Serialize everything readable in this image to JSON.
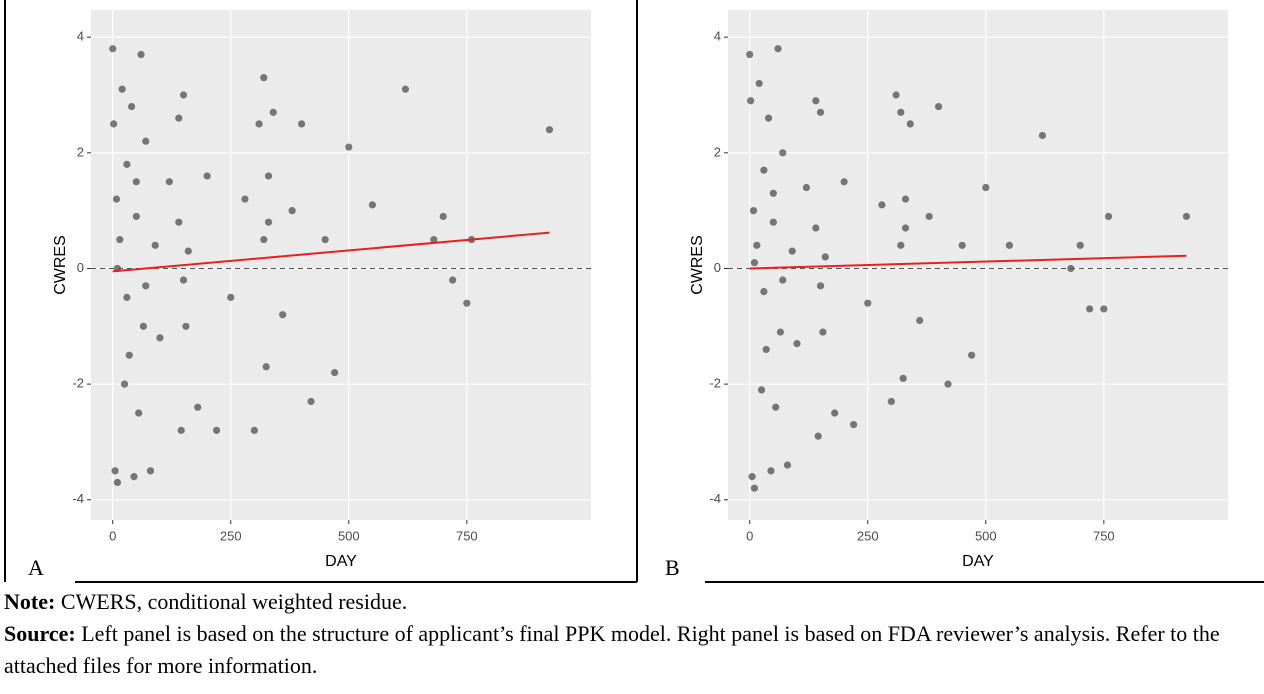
{
  "chart_data": [
    {
      "type": "scatter",
      "panel_label": "A",
      "x_label": "DAY",
      "y_label": "CWRES",
      "xlim": [
        -46,
        1013
      ],
      "ylim": [
        -4.35,
        4.47
      ],
      "xticks": [
        0,
        250,
        500,
        750
      ],
      "yticks": [
        -4,
        -2,
        0,
        2,
        4
      ],
      "hline": 0,
      "points": {
        "color": "#000000",
        "x": [
          0,
          2,
          5,
          8,
          10,
          15,
          20,
          25,
          30,
          35,
          40,
          45,
          50,
          55,
          60,
          65,
          70,
          80,
          90,
          100,
          120,
          140,
          145,
          150,
          155,
          160,
          180,
          200,
          220,
          250,
          280,
          300,
          310,
          320,
          325,
          330,
          340,
          360,
          380,
          400,
          420,
          450,
          470,
          500,
          550,
          620,
          680,
          700,
          720,
          750,
          760,
          925,
          10,
          30,
          50,
          70,
          140,
          150,
          320,
          330
        ],
        "y": [
          3.8,
          2.5,
          -3.5,
          1.2,
          -3.7,
          0.5,
          3.1,
          -2.0,
          1.8,
          -1.5,
          2.8,
          -3.6,
          0.9,
          -2.5,
          3.7,
          -1.0,
          2.2,
          -3.5,
          0.4,
          -1.2,
          1.5,
          2.6,
          -2.8,
          3.0,
          -1.0,
          0.3,
          -2.4,
          1.6,
          -2.8,
          -0.5,
          1.2,
          -2.8,
          2.5,
          3.3,
          -1.7,
          0.8,
          2.7,
          -0.8,
          1.0,
          2.5,
          -2.3,
          0.5,
          -1.8,
          2.1,
          1.1,
          3.1,
          0.5,
          0.9,
          -0.2,
          -0.6,
          0.5,
          2.4,
          0.0,
          -0.5,
          1.5,
          -0.3,
          0.8,
          -0.2,
          0.5,
          1.6
        ]
      },
      "trend": {
        "color": "#e8211c",
        "x": [
          0,
          925
        ],
        "y": [
          -0.05,
          0.62
        ]
      }
    },
    {
      "type": "scatter",
      "panel_label": "B",
      "x_label": "DAY",
      "y_label": "CWRES",
      "xlim": [
        -46,
        1013
      ],
      "ylim": [
        -4.35,
        4.47
      ],
      "xticks": [
        0,
        250,
        500,
        750
      ],
      "yticks": [
        -4,
        -2,
        0,
        2,
        4
      ],
      "hline": 0,
      "points": {
        "color": "#000000",
        "x": [
          0,
          2,
          5,
          8,
          10,
          15,
          20,
          25,
          30,
          35,
          40,
          45,
          50,
          55,
          60,
          65,
          70,
          80,
          90,
          100,
          120,
          140,
          145,
          150,
          155,
          160,
          180,
          200,
          220,
          250,
          280,
          300,
          310,
          320,
          325,
          330,
          340,
          360,
          380,
          400,
          420,
          450,
          470,
          500,
          550,
          620,
          680,
          700,
          720,
          750,
          760,
          925,
          10,
          30,
          50,
          70,
          140,
          150,
          320,
          330
        ],
        "y": [
          3.7,
          2.9,
          -3.6,
          1.0,
          -3.8,
          0.4,
          3.2,
          -2.1,
          1.7,
          -1.4,
          2.6,
          -3.5,
          0.8,
          -2.4,
          3.8,
          -1.1,
          2.0,
          -3.4,
          0.3,
          -1.3,
          1.4,
          2.9,
          -2.9,
          2.7,
          -1.1,
          0.2,
          -2.5,
          1.5,
          -2.7,
          -0.6,
          1.1,
          -2.3,
          3.0,
          2.7,
          -1.9,
          0.7,
          2.5,
          -0.9,
          0.9,
          2.8,
          -2.0,
          0.4,
          -1.5,
          1.4,
          0.4,
          2.3,
          0.0,
          0.4,
          -0.7,
          -0.7,
          0.9,
          0.9,
          0.1,
          -0.4,
          1.3,
          -0.2,
          0.7,
          -0.3,
          0.4,
          1.2
        ]
      },
      "trend": {
        "color": "#e8211c",
        "x": [
          0,
          925
        ],
        "y": [
          0.0,
          0.22
        ]
      }
    }
  ],
  "note": {
    "label": "Note:",
    "text": "CWERS, conditional weighted residue."
  },
  "source": {
    "label": "Source:",
    "text": "Left panel is based on the structure of applicant’s final PPK model. Right panel is based on FDA reviewer’s analysis. Refer to the attached files for more information."
  }
}
